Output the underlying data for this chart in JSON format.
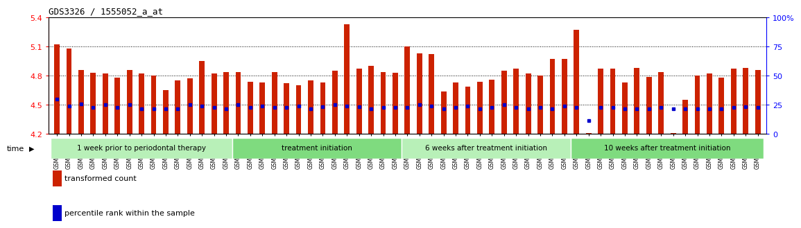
{
  "title": "GDS3326 / 1555052_a_at",
  "ylim": [
    4.2,
    5.4
  ],
  "yticks": [
    4.2,
    4.5,
    4.8,
    5.1,
    5.4
  ],
  "ytick_labels": [
    "4.2",
    "4.5",
    "4.8",
    "5.1",
    "5.4"
  ],
  "right_yticks": [
    0,
    25,
    50,
    75,
    100
  ],
  "right_ytick_labels": [
    "0",
    "25",
    "50",
    "75",
    "100%"
  ],
  "bar_color": "#cc2200",
  "dot_color": "#0000cc",
  "background_color": "#ffffff",
  "samples": [
    "GSM155448",
    "GSM155452",
    "GSM155455",
    "GSM155459",
    "GSM155463",
    "GSM155467",
    "GSM155471",
    "GSM155475",
    "GSM155479",
    "GSM155483",
    "GSM155487",
    "GSM155491",
    "GSM155495",
    "GSM155499",
    "GSM155503",
    "GSM155449",
    "GSM155456",
    "GSM155460",
    "GSM155464",
    "GSM155468",
    "GSM155472",
    "GSM155476",
    "GSM155480",
    "GSM155484",
    "GSM155488",
    "GSM155492",
    "GSM155496",
    "GSM155500",
    "GSM155504",
    "GSM155450",
    "GSM155453",
    "GSM155457",
    "GSM155461",
    "GSM155465",
    "GSM155469",
    "GSM155473",
    "GSM155477",
    "GSM155481",
    "GSM155485",
    "GSM155489",
    "GSM155493",
    "GSM155497",
    "GSM155501",
    "GSM155451",
    "GSM155505",
    "GSM155454",
    "GSM155458",
    "GSM155462",
    "GSM155466",
    "GSM155470",
    "GSM155474",
    "GSM155478",
    "GSM155482",
    "GSM155486",
    "GSM155490",
    "GSM155494",
    "GSM155498",
    "GSM155502",
    "GSM155506"
  ],
  "bar_heights": [
    5.12,
    5.08,
    4.86,
    4.83,
    4.82,
    4.78,
    4.86,
    4.82,
    4.8,
    4.65,
    4.75,
    4.77,
    4.95,
    4.82,
    4.84,
    4.84,
    4.74,
    4.73,
    4.84,
    4.72,
    4.7,
    4.75,
    4.73,
    4.85,
    5.33,
    4.87,
    4.9,
    4.84,
    4.83,
    5.1,
    5.03,
    5.02,
    4.64,
    4.73,
    4.69,
    4.74,
    4.76,
    4.85,
    4.87,
    4.82,
    4.8,
    4.97,
    4.97,
    5.27,
    4.21,
    4.87,
    4.87,
    4.73,
    4.88,
    4.79,
    4.84,
    4.21,
    4.55,
    4.8,
    4.82,
    4.78,
    4.87,
    4.88,
    4.86
  ],
  "dot_values": [
    4.56,
    4.49,
    4.51,
    4.47,
    4.5,
    4.47,
    4.5,
    4.46,
    4.46,
    4.46,
    4.46,
    4.5,
    4.49,
    4.47,
    4.46,
    4.5,
    4.47,
    4.49,
    4.47,
    4.47,
    4.49,
    4.46,
    4.48,
    4.5,
    4.49,
    4.48,
    4.46,
    4.47,
    4.47,
    4.47,
    4.5,
    4.49,
    4.46,
    4.47,
    4.49,
    4.46,
    4.47,
    4.5,
    4.47,
    4.46,
    4.47,
    4.46,
    4.49,
    4.47,
    4.34,
    4.47,
    4.47,
    4.46,
    4.46,
    4.46,
    4.47,
    4.46,
    4.46,
    4.46,
    4.46,
    4.46,
    4.47,
    4.48,
    4.47
  ],
  "group_boundaries": [
    0,
    15,
    29,
    43,
    59
  ],
  "group_labels": [
    "1 week prior to periodontal therapy",
    "treatment initiation",
    "6 weeks after treatment initiation",
    "10 weeks after treatment initiation"
  ],
  "group_colors": [
    "#b8f0b8",
    "#7fdb7f",
    "#b8f0b8",
    "#7fdb7f"
  ],
  "time_label": "time",
  "legend_bar_label": "transformed count",
  "legend_dot_label": "percentile rank within the sample"
}
